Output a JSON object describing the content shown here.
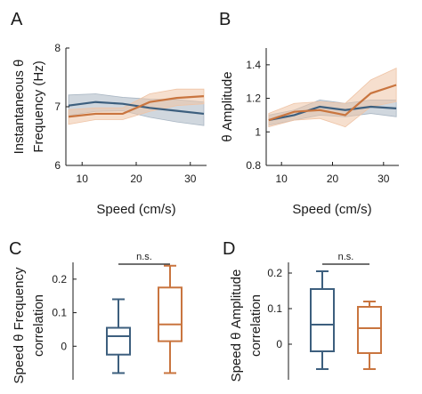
{
  "colors": {
    "blue": "#3d5f7e",
    "orange": "#c9753f",
    "blue_band": "#a9b6c3",
    "orange_band": "#efc4a6"
  },
  "panels": {
    "a": "A",
    "b": "B",
    "c": "C",
    "d": "D"
  },
  "chart_data": [
    {
      "type": "line",
      "panel": "A",
      "xlabel": "Speed (cm/s)",
      "ylabel": [
        "Instantaneous  θ",
        "Frequency (Hz)"
      ],
      "xlim": [
        7,
        33
      ],
      "ylim": [
        6,
        8
      ],
      "xticks": [
        10,
        20,
        30
      ],
      "yticks": [
        6,
        7,
        8
      ],
      "x": [
        7.5,
        12.5,
        17.5,
        22.5,
        27.5,
        32.5
      ],
      "series": [
        {
          "color_key": "blue",
          "values": [
            7.02,
            7.08,
            7.05,
            6.98,
            6.93,
            6.88
          ],
          "lower": [
            6.85,
            6.92,
            6.93,
            6.82,
            6.74,
            6.68
          ],
          "upper": [
            7.2,
            7.22,
            7.16,
            7.13,
            7.12,
            7.08
          ]
        },
        {
          "color_key": "orange",
          "values": [
            6.83,
            6.88,
            6.88,
            7.08,
            7.15,
            7.18
          ],
          "lower": [
            6.7,
            6.78,
            6.78,
            6.92,
            7.02,
            7.05
          ],
          "upper": [
            6.95,
            6.98,
            6.98,
            7.22,
            7.3,
            7.3
          ]
        }
      ]
    },
    {
      "type": "line",
      "panel": "B",
      "xlabel": "Speed (cm/s)",
      "ylabel": [
        "θ  Amplitude"
      ],
      "xlim": [
        7,
        33
      ],
      "ylim": [
        0.8,
        1.5
      ],
      "xticks": [
        10,
        20,
        30
      ],
      "yticks": [
        0.8,
        1,
        1.2,
        1.4
      ],
      "x": [
        7.5,
        12.5,
        17.5,
        22.5,
        27.5,
        32.5
      ],
      "series": [
        {
          "color_key": "blue",
          "values": [
            1.07,
            1.1,
            1.15,
            1.13,
            1.15,
            1.14
          ],
          "lower": [
            1.04,
            1.07,
            1.1,
            1.09,
            1.11,
            1.09
          ],
          "upper": [
            1.1,
            1.13,
            1.19,
            1.17,
            1.19,
            1.19
          ]
        },
        {
          "color_key": "orange",
          "values": [
            1.07,
            1.12,
            1.13,
            1.1,
            1.23,
            1.28
          ],
          "lower": [
            1.03,
            1.07,
            1.08,
            1.03,
            1.15,
            1.18
          ],
          "upper": [
            1.11,
            1.17,
            1.18,
            1.17,
            1.31,
            1.38
          ]
        }
      ]
    },
    {
      "type": "box",
      "panel": "C",
      "ylabel": [
        "Speed θ Frequency",
        "correlation"
      ],
      "ylim": [
        -0.1,
        0.25
      ],
      "yticks": [
        0,
        0.1,
        0.2
      ],
      "significance": "n.s.",
      "boxes": [
        {
          "color_key": "blue",
          "min": -0.08,
          "q1": -0.025,
          "median": 0.03,
          "q3": 0.055,
          "max": 0.14
        },
        {
          "color_key": "orange",
          "min": -0.08,
          "q1": 0.015,
          "median": 0.065,
          "q3": 0.175,
          "max": 0.24
        }
      ]
    },
    {
      "type": "box",
      "panel": "D",
      "ylabel": [
        "Speed  θ Amplitude",
        "correlation"
      ],
      "ylim": [
        -0.1,
        0.23
      ],
      "yticks": [
        0,
        0.1,
        0.2
      ],
      "significance": "n.s.",
      "boxes": [
        {
          "color_key": "blue",
          "min": -0.07,
          "q1": -0.02,
          "median": 0.055,
          "q3": 0.155,
          "max": 0.205
        },
        {
          "color_key": "orange",
          "min": -0.07,
          "q1": -0.025,
          "median": 0.045,
          "q3": 0.105,
          "max": 0.12
        }
      ]
    }
  ]
}
